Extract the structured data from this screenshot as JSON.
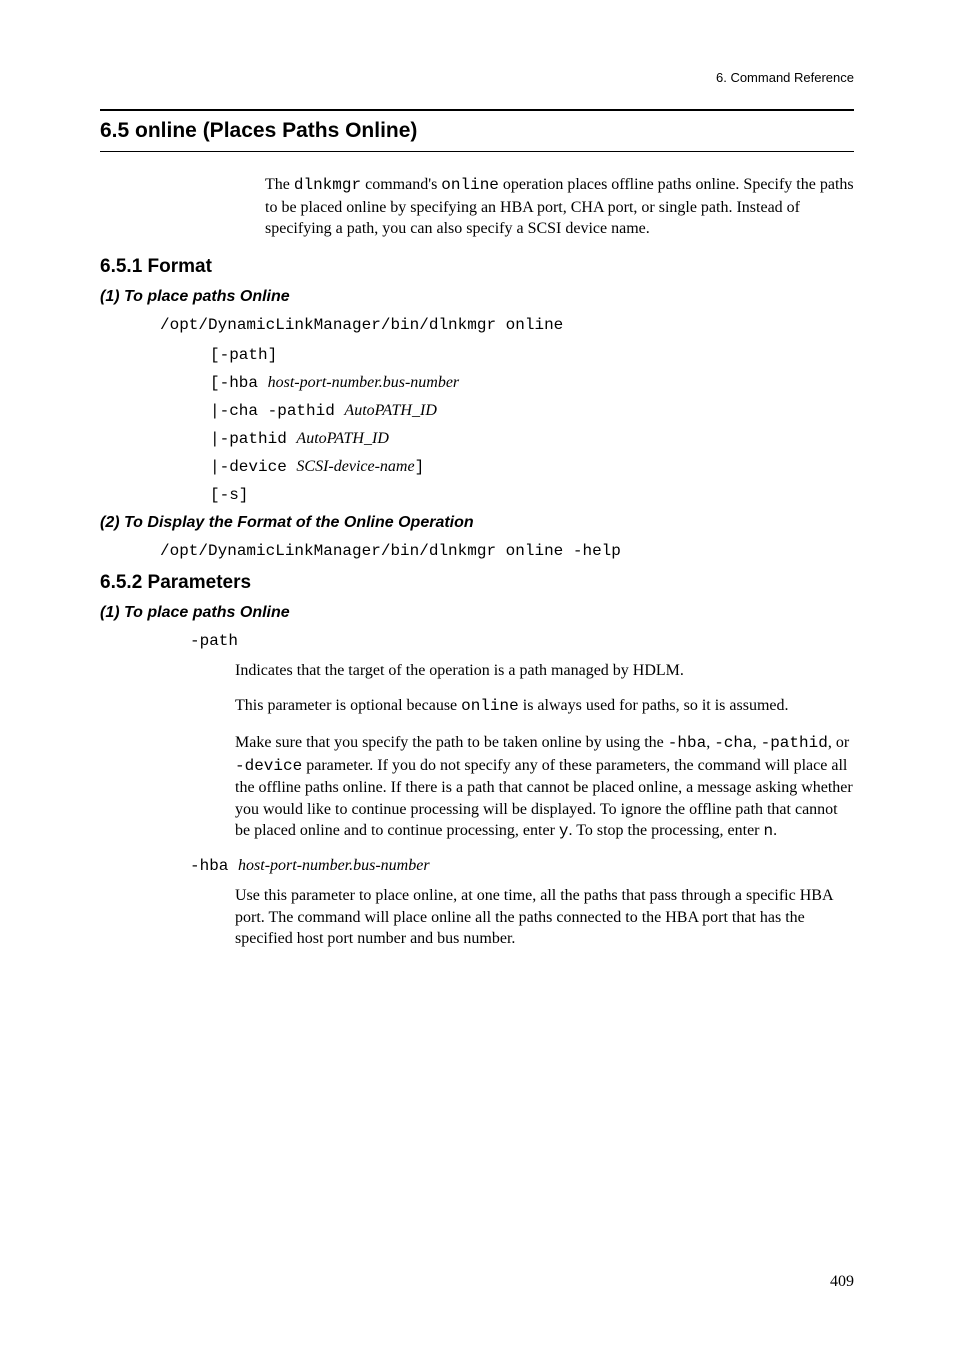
{
  "header": {
    "chapter": "6.  Command Reference"
  },
  "section": {
    "title": "6.5  online (Places Paths Online)",
    "intro": "The dlnkmgr command's online operation places offline paths online. Specify the paths to be placed online by specifying an HBA port, CHA port, or single path. Instead of specifying a path, you can also specify a SCSI device name.",
    "intro_pre": "The ",
    "intro_cmd1": "dlnkmgr",
    "intro_mid1": " command's ",
    "intro_cmd2": "online",
    "intro_post": " operation places offline paths online. Specify the paths to be placed online by specifying an HBA port, CHA port, or single path. Instead of specifying a path, you can also specify a SCSI device name."
  },
  "format": {
    "title": "6.5.1  Format",
    "item1": {
      "title": "(1)  To place paths Online",
      "command": "/opt/DynamicLinkManager/bin/dlnkmgr online",
      "opt1": "[-path]",
      "opt2_pre": "[-hba ",
      "opt2_italic": "host-port-number.bus-number",
      "opt3_pre": "|-cha -pathid ",
      "opt3_italic": "AutoPATH_ID",
      "opt4_pre": "|-pathid ",
      "opt4_italic": "AutoPATH_ID",
      "opt5_pre": "|-device ",
      "opt5_italic": "SCSI-device-name",
      "opt5_post": "]",
      "opt6": "[-s]"
    },
    "item2": {
      "title": "(2)  To Display the Format of the Online Operation",
      "command": "/opt/DynamicLinkManager/bin/dlnkmgr online -help"
    }
  },
  "parameters": {
    "title": "6.5.2  Parameters",
    "item1": {
      "title": "(1)  To place paths Online",
      "param1_name": "-path",
      "param1_desc1": "Indicates that the target of the operation is a path managed by HDLM.",
      "param1_desc2_pre": "This parameter is optional because ",
      "param1_desc2_mono": "online",
      "param1_desc2_post": " is always used for paths, so it is assumed.",
      "param1_desc3_pre": "Make sure that you specify the path to be taken online by using the ",
      "param1_desc3_m1": "-hba",
      "param1_desc3_t1": ", ",
      "param1_desc3_m2": "-cha",
      "param1_desc3_t2": ", ",
      "param1_desc3_m3": "-pathid",
      "param1_desc3_t3": ", or ",
      "param1_desc3_m4": "-device",
      "param1_desc3_t4": " parameter. If you do not specify any of these parameters, the command will place all the offline paths online. If there is a path that cannot be placed online, a message asking whether you would like to continue processing will be displayed. To ignore the offline path that cannot be placed online and to continue processing, enter ",
      "param1_desc3_m5": "y",
      "param1_desc3_t5": ". To stop the processing, enter ",
      "param1_desc3_m6": "n",
      "param1_desc3_t6": ".",
      "param2_name_pre": "-hba ",
      "param2_name_italic": "host-port-number.bus-number",
      "param2_desc": "Use this parameter to place online, at one time, all the paths that pass through a specific HBA port. The command will place online all the paths connected to the HBA port that has the specified host port number and bus number."
    }
  },
  "pageNumber": "409"
}
